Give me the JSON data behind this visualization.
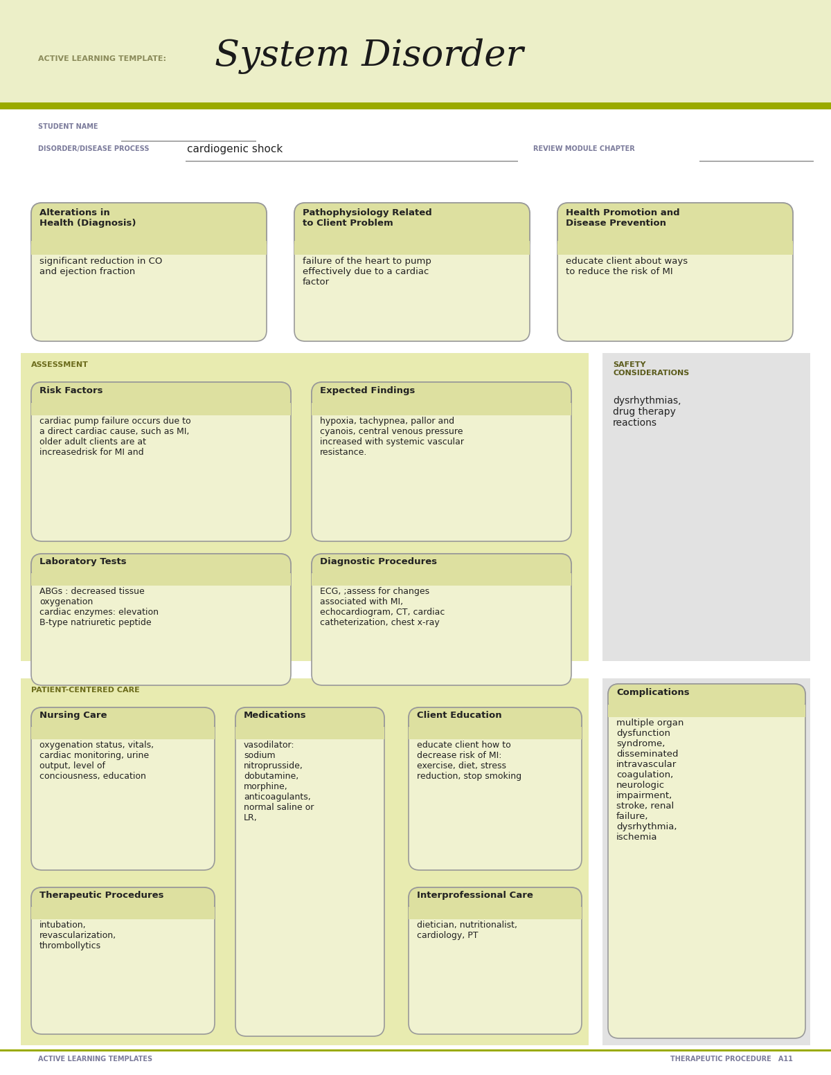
{
  "header_bg": "#ecefc8",
  "olive_line": "#9aaa00",
  "white_bg": "#ffffff",
  "box_bg": "#f0f2d0",
  "box_title_bg": "#dde0a0",
  "assess_bg": "#e8ebb0",
  "gray_bg": "#e2e2e2",
  "label_purple": "#7b7b9b",
  "label_olive": "#6b6b1b",
  "text_dark": "#222222",
  "border_color": "#999999",
  "title_small": "ACTIVE LEARNING TEMPLATE:",
  "title_large": "System Disorder",
  "student_label": "STUDENT NAME",
  "disorder_label": "DISORDER/DISEASE PROCESS",
  "disorder_value": "cardiogenic shock",
  "review_label": "REVIEW MODULE CHAPTER",
  "box1_title": "Alterations in\nHealth (Diagnosis)",
  "box1_body": "significant reduction in CO\nand ejection fraction",
  "box2_title": "Pathophysiology Related\nto Client Problem",
  "box2_body": "failure of the heart to pump\neffectively due to a cardiac\nfactor",
  "box3_title": "Health Promotion and\nDisease Prevention",
  "box3_body": "educate client about ways\nto reduce the risk of MI",
  "assessment_label": "ASSESSMENT",
  "safety_label": "SAFETY\nCONSIDERATIONS",
  "safety_body": "dysrhythmias,\ndrug therapy\nreactions",
  "risk_title": "Risk Factors",
  "risk_body": "cardiac pump failure occurs due to\na direct cardiac cause, such as MI,\nolder adult clients are at\nincreasedrisk for MI and",
  "expected_title": "Expected Findings",
  "expected_body": "hypoxia, tachypnea, pallor and\ncyanois, central venous pressure\nincreased with systemic vascular\nresistance.",
  "lab_title": "Laboratory Tests",
  "lab_body": "ABGs : decreased tissue\noxygenation\ncardiac enzymes: elevation\nB-type natriuretic peptide",
  "diag_title": "Diagnostic Procedures",
  "diag_body": "ECG, ;assess for changes\nassociated with MI,\nechocardiogram, CT, cardiac\ncatheterization, chest x-ray",
  "patient_label": "PATIENT-CENTERED CARE",
  "complications_title": "Complications",
  "complications_body": "multiple organ\ndysfunction\nsyndrome,\ndisseminated\nintravascular\ncoagulation,\nneurologic\nimpairment,\nstroke, renal\nfailure,\ndysrhythmia,\nischemia",
  "nursing_title": "Nursing Care",
  "nursing_body": "oxygenation status, vitals,\ncardiac monitoring, urine\noutput, level of\nconciousness, education",
  "meds_title": "Medications",
  "meds_body": "vasodilator:\nsodium\nnitroprusside,\ndobutamine,\nmorphine,\nanticoagulants,\nnormal saline or\nLR,",
  "client_ed_title": "Client Education",
  "client_ed_body": "educate client how to\ndecrease risk of MI:\nexercise, diet, stress\nreduction, stop smoking",
  "therapeutic_title": "Therapeutic Procedures",
  "therapeutic_body": "intubation,\nrevascularization,\nthrombollytics",
  "interpro_title": "Interprofessional Care",
  "interpro_body": "dietician, nutritionalist,\ncardiology, PT",
  "footer_left": "ACTIVE LEARNING TEMPLATES",
  "footer_right": "THERAPEUTIC PROCEDURE   A11"
}
